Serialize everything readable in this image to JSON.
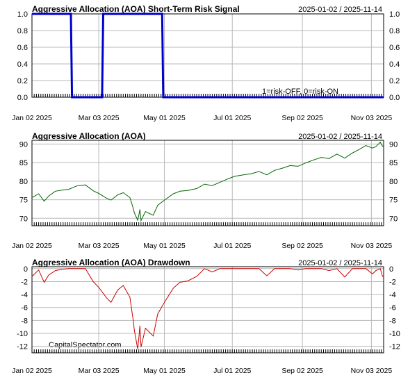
{
  "colors": {
    "signal": "#0000cc",
    "price": "#006400",
    "drawdown": "#cc0000",
    "grid": "#b8b8b8",
    "frame": "#000000"
  },
  "x_axis": {
    "start": "2025-01-02",
    "end": "2025-11-14",
    "tick_dates": [
      "2025-01-02",
      "2025-03-03",
      "2025-05-01",
      "2025-07-01",
      "2025-09-02",
      "2025-11-03"
    ],
    "tick_labels": [
      "Jan 02 2025",
      "Mar 03 2025",
      "May 01 2025",
      "Jul 01 2025",
      "Sep 02 2025",
      "Nov 03 2025"
    ]
  },
  "watermark": "CapitalSpectator.com",
  "chart_data": [
    {
      "type": "line",
      "title": "Aggressive Allocation (AOA) Short-Term Risk Signal",
      "date_range": "2025-01-02 / 2025-11-14",
      "note": "1=risk-OFF, 0=risk-ON",
      "ylim": [
        0,
        1.0
      ],
      "yticks": [
        0.0,
        0.2,
        0.4,
        0.6,
        0.8,
        1.0
      ],
      "ytick_labels": [
        "0.0",
        "0.2",
        "0.4",
        "0.6",
        "0.8",
        "1.0"
      ],
      "grid": true,
      "series": [
        {
          "x": [
            "2025-01-02",
            "2025-02-06",
            "2025-02-07",
            "2025-03-06",
            "2025-03-07",
            "2025-04-29",
            "2025-04-30",
            "2025-11-14"
          ],
          "y": [
            1,
            1,
            0,
            0,
            1,
            1,
            0,
            0
          ]
        }
      ]
    },
    {
      "type": "line",
      "title": "Aggressive Allocation (AOA)",
      "date_range": "2025-01-02 / 2025-11-14",
      "ylim": [
        68,
        91
      ],
      "yticks": [
        70,
        75,
        80,
        85,
        90
      ],
      "ytick_labels": [
        "70",
        "75",
        "80",
        "85",
        "90"
      ],
      "grid": true,
      "series": [
        {
          "x": [
            "2025-01-02",
            "2025-01-08",
            "2025-01-13",
            "2025-01-17",
            "2025-01-23",
            "2025-01-29",
            "2025-02-04",
            "2025-02-11",
            "2025-02-19",
            "2025-02-26",
            "2025-03-03",
            "2025-03-10",
            "2025-03-14",
            "2025-03-20",
            "2025-03-25",
            "2025-03-31",
            "2025-04-03",
            "2025-04-04",
            "2025-04-07",
            "2025-04-08",
            "2025-04-09",
            "2025-04-10",
            "2025-04-14",
            "2025-04-21",
            "2025-04-25",
            "2025-05-01",
            "2025-05-09",
            "2025-05-15",
            "2025-05-22",
            "2025-05-30",
            "2025-06-06",
            "2025-06-13",
            "2025-06-20",
            "2025-06-27",
            "2025-07-03",
            "2025-07-11",
            "2025-07-18",
            "2025-07-25",
            "2025-08-01",
            "2025-08-08",
            "2025-08-15",
            "2025-08-22",
            "2025-08-29",
            "2025-09-05",
            "2025-09-12",
            "2025-09-19",
            "2025-09-26",
            "2025-10-03",
            "2025-10-10",
            "2025-10-17",
            "2025-10-24",
            "2025-10-29",
            "2025-11-04",
            "2025-11-07",
            "2025-11-11",
            "2025-11-13",
            "2025-11-14"
          ],
          "y": [
            75.6,
            76.6,
            74.6,
            76.0,
            77.3,
            77.6,
            77.8,
            78.7,
            79.0,
            77.4,
            76.7,
            75.4,
            74.9,
            76.3,
            76.9,
            75.6,
            72.7,
            71.5,
            69.5,
            70.8,
            72.4,
            69.4,
            71.8,
            70.8,
            73.5,
            74.9,
            76.6,
            77.3,
            77.5,
            78.0,
            79.2,
            78.8,
            79.7,
            80.6,
            81.3,
            81.7,
            82.0,
            82.6,
            81.7,
            82.9,
            83.5,
            84.2,
            84.0,
            84.9,
            85.7,
            86.4,
            86.1,
            87.3,
            86.2,
            87.6,
            88.7,
            89.6,
            88.9,
            89.3,
            90.5,
            89.4,
            89.5
          ]
        }
      ]
    },
    {
      "type": "line",
      "title": "Aggressive Allocation (AOA) Drawdown",
      "date_range": "2025-01-02 / 2025-11-14",
      "ylim": [
        -13,
        0.3
      ],
      "yticks": [
        -12,
        -10,
        -8,
        -6,
        -4,
        -2,
        0
      ],
      "ytick_labels": [
        "-12",
        "-10",
        "-8",
        "-6",
        "-4",
        "-2",
        "0"
      ],
      "grid": true,
      "series": [
        {
          "x": [
            "2025-01-02",
            "2025-01-08",
            "2025-01-13",
            "2025-01-17",
            "2025-01-23",
            "2025-01-29",
            "2025-02-04",
            "2025-02-11",
            "2025-02-19",
            "2025-02-26",
            "2025-03-03",
            "2025-03-10",
            "2025-03-14",
            "2025-03-20",
            "2025-03-25",
            "2025-03-31",
            "2025-04-03",
            "2025-04-04",
            "2025-04-07",
            "2025-04-08",
            "2025-04-09",
            "2025-04-10",
            "2025-04-14",
            "2025-04-21",
            "2025-04-25",
            "2025-05-01",
            "2025-05-09",
            "2025-05-15",
            "2025-05-22",
            "2025-05-30",
            "2025-06-06",
            "2025-06-13",
            "2025-06-20",
            "2025-06-27",
            "2025-07-03",
            "2025-07-11",
            "2025-07-18",
            "2025-07-25",
            "2025-08-01",
            "2025-08-08",
            "2025-08-15",
            "2025-08-22",
            "2025-08-29",
            "2025-09-05",
            "2025-09-12",
            "2025-09-19",
            "2025-09-26",
            "2025-10-03",
            "2025-10-10",
            "2025-10-17",
            "2025-10-24",
            "2025-10-29",
            "2025-11-04",
            "2025-11-07",
            "2025-11-11",
            "2025-11-13",
            "2025-11-14"
          ],
          "y": [
            -1.2,
            -0.2,
            -2.1,
            -1.0,
            -0.3,
            -0.1,
            0.0,
            0.0,
            0.0,
            -2.0,
            -2.9,
            -4.5,
            -5.2,
            -3.3,
            -2.6,
            -4.4,
            -8.0,
            -9.5,
            -12.4,
            -10.8,
            -8.8,
            -12.1,
            -9.2,
            -10.4,
            -7.0,
            -5.2,
            -3.0,
            -2.1,
            -1.9,
            -1.2,
            0.0,
            -0.5,
            0.0,
            0.0,
            0.0,
            0.0,
            0.0,
            0.0,
            -1.1,
            0.0,
            0.0,
            0.0,
            -0.2,
            0.0,
            0.0,
            0.0,
            -0.3,
            0.0,
            -1.3,
            0.0,
            0.0,
            0.0,
            -0.8,
            -0.3,
            0.0,
            -1.2,
            -1.1
          ]
        }
      ]
    }
  ]
}
